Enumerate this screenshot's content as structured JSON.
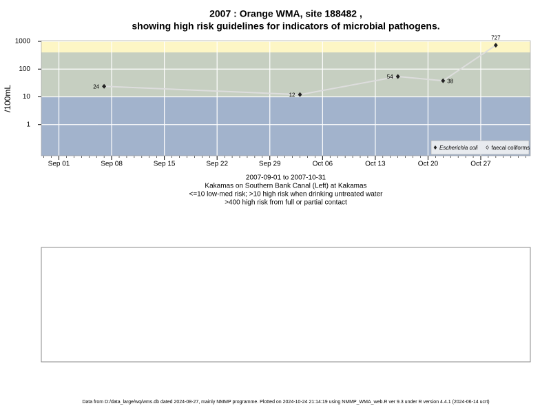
{
  "chart_data": {
    "type": "line",
    "title": "2007 : Orange WMA, site 188482 ,",
    "subtitle": "showing high risk guidelines for indicators of microbial pathogens.",
    "y_label": "/100mL",
    "notes": [
      "2007-09-01 to 2007-10-31",
      "Kakamas on Southern Bank Canal (Left) at Kakamas",
      "<=10 low-med risk; >10 high risk when drinking untreated water",
      ">400 high risk from full or partial contact"
    ],
    "footer": "Data from D:/data_large/wq/wms.db dated 2024-08-27, mainly NMMP programme. Plotted on 2024-10-24 21:14:19 using NMMP_WMA_web.R ver 9.3 under R version 4.4.1 (2024-06-14 ucrt)",
    "x": [
      "2007-09-07",
      "2007-10-03",
      "2007-10-16",
      "2007-10-22",
      "2007-10-29"
    ],
    "series": [
      {
        "name": "Escherichia coli",
        "color": "#222222",
        "line_color": "#dddddd",
        "values": [
          24,
          12,
          54,
          38,
          727
        ]
      },
      {
        "name": "faecal coliforms",
        "color": "#222222",
        "values": [
          null,
          null,
          null,
          null,
          null
        ]
      }
    ],
    "xlim": [
      "2007-08-29T16:00",
      "2007-11-02T14:00"
    ],
    "xticks": [
      {
        "value": "2007-09-01",
        "label": "Sep 01"
      },
      {
        "value": "2007-09-08",
        "label": "Sep 08"
      },
      {
        "value": "2007-09-15",
        "label": "Sep 15"
      },
      {
        "value": "2007-09-22",
        "label": "Sep 22"
      },
      {
        "value": "2007-09-29",
        "label": "Sep 29"
      },
      {
        "value": "2007-10-06",
        "label": "Oct 06"
      },
      {
        "value": "2007-10-13",
        "label": "Oct 13"
      },
      {
        "value": "2007-10-20",
        "label": "Oct 20"
      },
      {
        "value": "2007-10-27",
        "label": "Oct 27"
      }
    ],
    "ylim": [
      0.075,
      1060
    ],
    "yticks": [
      1,
      10,
      100,
      1000
    ],
    "log_y": true,
    "grid": true,
    "thresholds": [
      10,
      400
    ],
    "band_colors": [
      "#a2b3cc",
      "#c6cfc1",
      "#fdf6c5"
    ],
    "legend": "bottom-right"
  }
}
